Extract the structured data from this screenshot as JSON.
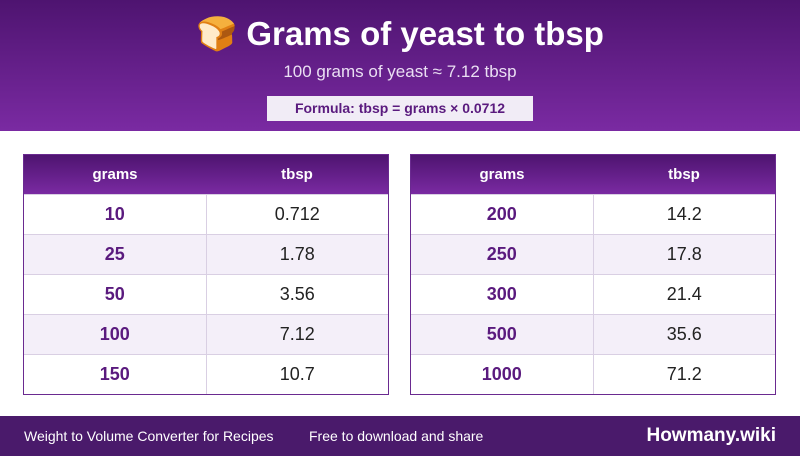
{
  "header": {
    "title": "🍞 Grams of yeast to tbsp",
    "subtitle": "100 grams of yeast ≈ 7.12 tbsp",
    "formula": "Formula: tbsp = grams × 0.0712"
  },
  "tables": [
    {
      "columns": [
        "grams",
        "tbsp"
      ],
      "rows": [
        [
          "10",
          "0.712"
        ],
        [
          "25",
          "1.78"
        ],
        [
          "50",
          "3.56"
        ],
        [
          "100",
          "7.12"
        ],
        [
          "150",
          "10.7"
        ]
      ]
    },
    {
      "columns": [
        "grams",
        "tbsp"
      ],
      "rows": [
        [
          "200",
          "14.2"
        ],
        [
          "250",
          "17.8"
        ],
        [
          "300",
          "21.4"
        ],
        [
          "500",
          "35.6"
        ],
        [
          "1000",
          "71.2"
        ]
      ]
    }
  ],
  "footer": {
    "left": "Weight to Volume Converter for Recipes",
    "middle": "Free to download and share",
    "brand": "Howmany.wiki"
  }
}
